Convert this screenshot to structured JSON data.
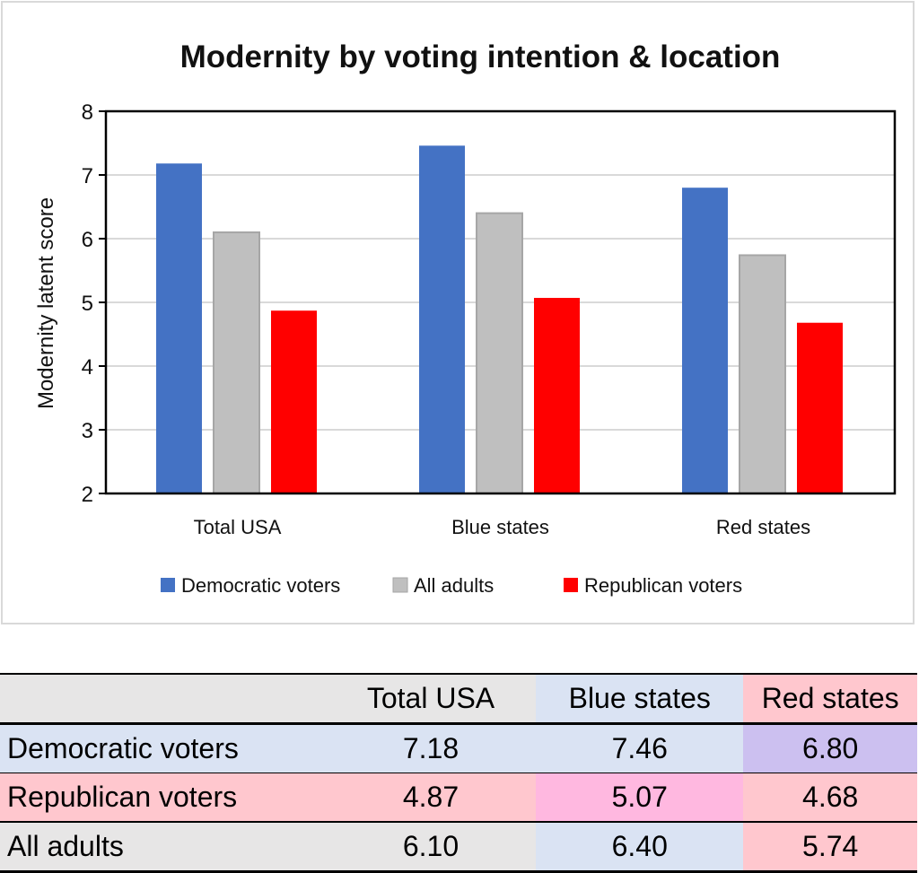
{
  "chart_data": {
    "type": "bar",
    "title": "Modernity by voting intention & location",
    "xlabel": "",
    "ylabel": "Modernity latent score",
    "ylim": [
      2,
      8
    ],
    "yticks": [
      "2",
      "3",
      "4",
      "5",
      "6",
      "7",
      "8"
    ],
    "grid": true,
    "legend_position": "bottom",
    "categories": [
      "Total USA",
      "Blue states",
      "Red states"
    ],
    "series": [
      {
        "name": "Democratic voters",
        "color": "#4472c4",
        "values": [
          7.18,
          7.46,
          6.8
        ]
      },
      {
        "name": "All adults",
        "color": "#bfbfbf",
        "values": [
          6.1,
          6.4,
          5.74
        ]
      },
      {
        "name": "Republican voters",
        "color": "#ff0000",
        "values": [
          4.87,
          5.07,
          4.68
        ]
      }
    ]
  },
  "table": {
    "headers": [
      "",
      "Total USA",
      "Blue states",
      "Red states"
    ],
    "rows": [
      {
        "label": "Democratic voters",
        "values": [
          "7.18",
          "7.46",
          "6.80"
        ],
        "colors": [
          "#dae3f3",
          "#dae3f3",
          "#dae3f3",
          "#ccc0f0"
        ]
      },
      {
        "label": "Republican voters",
        "values": [
          "4.87",
          "5.07",
          "4.68"
        ],
        "colors": [
          "#ffc7ce",
          "#ffc7ce",
          "#ffb8e0",
          "#ffc7ce"
        ]
      },
      {
        "label": "All adults",
        "values": [
          "6.10",
          "6.40",
          "5.74"
        ],
        "colors": [
          "#e7e6e6",
          "#e7e6e6",
          "#dae3f3",
          "#ffc7ce"
        ]
      }
    ],
    "header_colors": [
      "#e7e6e6",
      "#e7e6e6",
      "#dae3f3",
      "#ffc7ce"
    ]
  }
}
